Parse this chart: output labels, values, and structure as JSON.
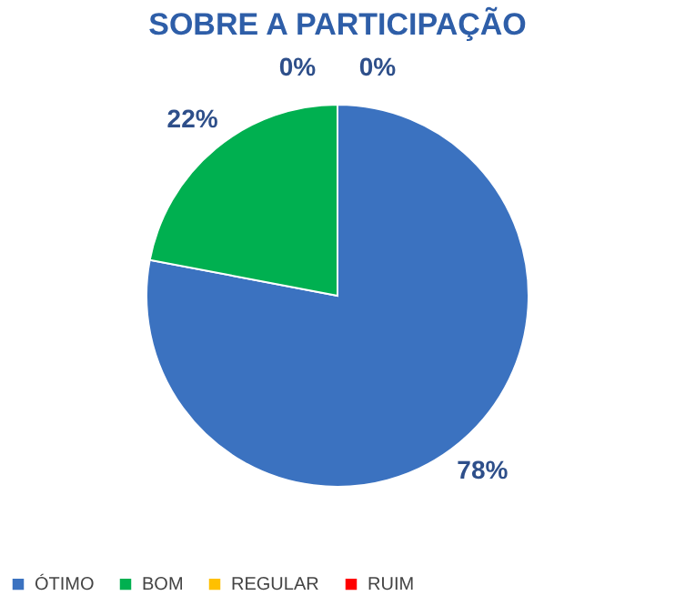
{
  "chart_data": {
    "type": "pie",
    "title": "SOBRE A PARTICIPAÇÃO",
    "categories": [
      "ÓTIMO",
      "BOM",
      "REGULAR",
      "RUIM"
    ],
    "values": [
      78,
      22,
      0,
      0
    ],
    "colors": [
      "#3b72c0",
      "#00b050",
      "#ffc000",
      "#ff0000"
    ],
    "value_labels": [
      "78%",
      "22%",
      "0%",
      "0%"
    ],
    "legend": "bottom"
  }
}
